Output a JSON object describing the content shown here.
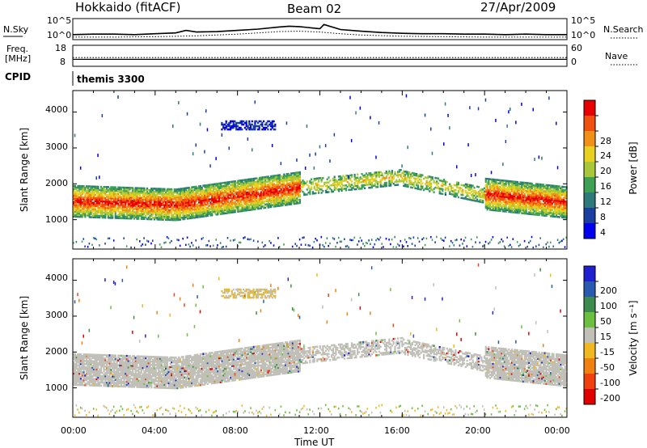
{
  "header": {
    "station": "Hokkaido (fitACF)",
    "beam": "Beam 02",
    "date": "27/Apr/2009"
  },
  "colors": {
    "scale": [
      "#0000ee",
      "#1a3fa0",
      "#2e7a7a",
      "#3da055",
      "#a8c83a",
      "#e8d020",
      "#f09018",
      "#f05010",
      "#e80000"
    ],
    "velocity": [
      "#2020d0",
      "#2a5ab0",
      "#3c8c50",
      "#6cc040",
      "#c0c0b8",
      "#f0b820",
      "#f08010",
      "#f04010",
      "#e00000"
    ]
  },
  "chart_data": [
    {
      "type": "line",
      "panel": "noise",
      "left_labels": [
        "N.Sky"
      ],
      "right_labels": [
        "N.Search"
      ],
      "yticks": [
        "10^5",
        "10^0"
      ],
      "right_yticks": [
        "10^5",
        "10^0"
      ],
      "series": [
        {
          "name": "N.Sky",
          "style": "solid",
          "x": [
            0,
            1,
            2,
            3,
            4,
            5,
            5.5,
            6,
            7,
            8,
            9,
            10,
            10.5,
            11,
            12,
            12.2,
            13,
            14,
            15,
            16,
            17,
            18,
            19,
            20,
            21,
            22,
            23,
            24
          ],
          "y": [
            1.2,
            1.3,
            1.3,
            1.2,
            1.4,
            1.6,
            2.2,
            1.8,
            1.9,
            2.2,
            2.5,
            3.0,
            3.2,
            3.1,
            2.6,
            3.6,
            2.4,
            2.0,
            1.7,
            1.5,
            1.4,
            1.4,
            1.3,
            1.3,
            1.2,
            1.3,
            1.2,
            1.2
          ]
        },
        {
          "name": "N.Search",
          "style": "dotted",
          "x": [
            0,
            2,
            4,
            6,
            8,
            9,
            10,
            11,
            12,
            13,
            14,
            16,
            18,
            20,
            22,
            24
          ],
          "y": [
            0.6,
            0.6,
            0.7,
            0.9,
            1.3,
            1.6,
            1.9,
            2.0,
            1.8,
            1.4,
            1.1,
            0.8,
            0.7,
            0.6,
            0.6,
            0.6
          ]
        }
      ]
    },
    {
      "type": "line",
      "panel": "frequency",
      "left_labels": [
        "Freq.",
        "[MHz]"
      ],
      "right_labels": [
        "Nave"
      ],
      "yticks": [
        "18",
        "8"
      ],
      "right_yticks": [
        "60",
        "0"
      ],
      "series": [
        {
          "name": "Freq.",
          "style": "solid",
          "x": [
            0,
            24
          ],
          "y": [
            10,
            10
          ]
        },
        {
          "name": "Nave",
          "style": "dotted",
          "x": [
            0,
            24
          ],
          "y": [
            25,
            25
          ]
        }
      ]
    },
    {
      "type": "table",
      "panel": "cpid",
      "label": "CPID",
      "entries": [
        {
          "start": 0,
          "end": 24,
          "text": "themis 3300"
        }
      ]
    },
    {
      "type": "heatmap",
      "panel": "power",
      "ylabel": "Slant Range [km]",
      "xlim": [
        0,
        24
      ],
      "ylim": [
        180,
        4600
      ],
      "yticks": [
        1000,
        2000,
        3000,
        4000
      ],
      "colorbar": {
        "label": "Power [dB]",
        "ticks": [
          4,
          8,
          12,
          16,
          20,
          24,
          28
        ],
        "range": [
          0,
          32
        ]
      },
      "legend": "right",
      "grid": false
    },
    {
      "type": "heatmap",
      "panel": "velocity",
      "ylabel": "Slant Range [km]",
      "xlabel": "Time UT",
      "xlim": [
        0,
        24
      ],
      "ylim": [
        180,
        4600
      ],
      "xticks": [
        "00:00",
        "04:00",
        "08:00",
        "12:00",
        "16:00",
        "20:00",
        "00:00"
      ],
      "yticks": [
        1000,
        2000,
        3000,
        4000
      ],
      "colorbar": {
        "label": "Velocity [m s⁻¹]",
        "ticks": [
          "200",
          "100",
          "50",
          "15",
          "-15",
          "-50",
          "-100",
          "-200"
        ],
        "range": [
          -250,
          250
        ]
      },
      "legend": "right",
      "grid": false
    }
  ]
}
